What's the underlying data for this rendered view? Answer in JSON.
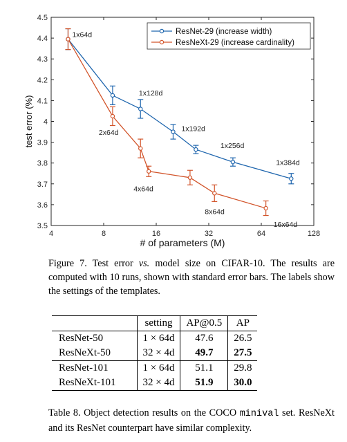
{
  "chart_data": {
    "type": "line",
    "xlabel": "# of parameters (M)",
    "ylabel": "test error (%)",
    "xscale": "log2",
    "xlim": [
      4,
      128
    ],
    "ylim": [
      3.5,
      4.5
    ],
    "xticks": [
      4,
      8,
      16,
      32,
      64,
      128
    ],
    "xtick_labels": [
      "4",
      "8",
      "16",
      "32",
      "64",
      "128"
    ],
    "yticks": [
      3.5,
      3.6,
      3.7,
      3.8,
      3.9,
      4.0,
      4.1,
      4.2,
      4.3,
      4.4,
      4.5
    ],
    "ytick_labels": [
      "3.5",
      "3.6",
      "3.7",
      "3.8",
      "3.9",
      "4",
      "4.1",
      "4.2",
      "4.3",
      "4.4",
      "4.5"
    ],
    "legend_position": "top-right",
    "series": [
      {
        "name": "ResNet-29 (increase width)",
        "color": "#1f66ae",
        "points": [
          {
            "x": 5,
            "y": 4.395,
            "err": 0.05,
            "label": "1x64d"
          },
          {
            "x": 9,
            "y": 4.125,
            "err": 0.045,
            "label": "1x128d"
          },
          {
            "x": 13,
            "y": 4.06,
            "err": 0.045,
            "label": ""
          },
          {
            "x": 20,
            "y": 3.95,
            "err": 0.035,
            "label": "1x192d"
          },
          {
            "x": 27,
            "y": 3.865,
            "err": 0.02,
            "label": ""
          },
          {
            "x": 44,
            "y": 3.805,
            "err": 0.02,
            "label": "1x256d"
          },
          {
            "x": 95,
            "y": 3.725,
            "err": 0.025,
            "label": "1x384d"
          }
        ]
      },
      {
        "name": "ResNeXt-29 (increase cardinality)",
        "color": "#d2542a",
        "points": [
          {
            "x": 5,
            "y": 4.395,
            "err": 0.05,
            "label": ""
          },
          {
            "x": 9,
            "y": 4.025,
            "err": 0.045,
            "label": "2x64d"
          },
          {
            "x": 13,
            "y": 3.87,
            "err": 0.045,
            "label": ""
          },
          {
            "x": 14.5,
            "y": 3.76,
            "err": 0.025,
            "label": "4x64d"
          },
          {
            "x": 25,
            "y": 3.73,
            "err": 0.035,
            "label": ""
          },
          {
            "x": 34.5,
            "y": 3.655,
            "err": 0.04,
            "label": "8x64d"
          },
          {
            "x": 68,
            "y": 3.583,
            "err": 0.035,
            "label": "16x64d"
          }
        ]
      }
    ]
  },
  "figure7": {
    "caption": "Figure 7. Test error vs. model size on CIFAR-10. The results are computed with 10 runs, shown with standard error bars. The labels show the settings of the templates.",
    "caption_prefix": "Figure 7. Test error ",
    "caption_vs": "vs.",
    "caption_rest": " model size on CIFAR-10. The results are computed with 10 runs, shown with standard error bars. The labels show the settings of the templates."
  },
  "table8": {
    "headers": [
      "",
      "setting",
      "AP@0.5",
      "AP"
    ],
    "rows": [
      {
        "model": "ResNet-50",
        "setting": "1 × 64d",
        "ap50": "47.6",
        "ap": "26.5"
      },
      {
        "model": "ResNeXt-50",
        "setting": "32 × 4d",
        "ap50": "49.7",
        "ap": "27.5"
      },
      {
        "model": "ResNet-101",
        "setting": "1 × 64d",
        "ap50": "51.1",
        "ap": "29.8"
      },
      {
        "model": "ResNeXt-101",
        "setting": "32 × 4d",
        "ap50": "51.9",
        "ap": "30.0"
      }
    ],
    "caption_prefix": "Table 8. Object detection results on the COCO ",
    "caption_code": "minival",
    "caption_rest": " set. ResNeXt and its ResNet counterpart have similar complexity."
  }
}
